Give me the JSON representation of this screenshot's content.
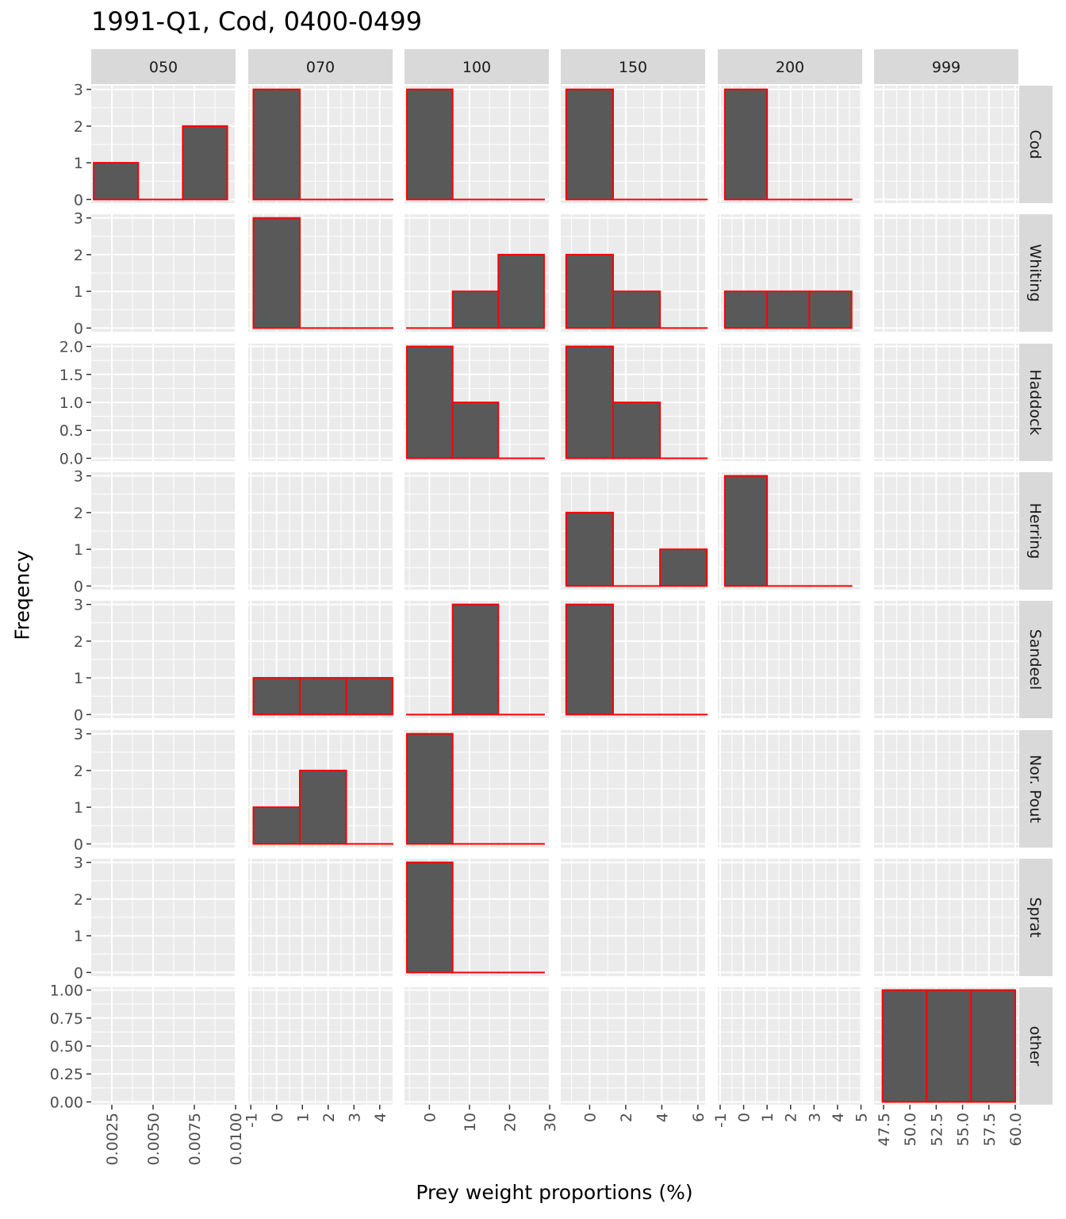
{
  "chart_data": {
    "type": "histogram-facet-grid",
    "title": "1991-Q1, Cod, 0400-0499",
    "xlabel": "Prey weight proportions (%)",
    "ylabel": "Freqency",
    "columns": [
      {
        "label": "050",
        "xlim": [
          0.00125,
          0.01
        ],
        "ticks": [
          0.0025,
          0.005,
          0.0075,
          0.01
        ],
        "tick_labels": [
          "0.0025",
          "0.0050",
          "0.0075",
          "0.0100"
        ]
      },
      {
        "label": "070",
        "xlim": [
          -1.1,
          4.5
        ],
        "ticks": [
          -1,
          0,
          1,
          2,
          3,
          4
        ],
        "tick_labels": [
          "-1",
          "0",
          "1",
          "2",
          "3",
          "4"
        ]
      },
      {
        "label": "100",
        "xlim": [
          -6.2,
          29.8
        ],
        "ticks": [
          0,
          10,
          20,
          30
        ],
        "tick_labels": [
          "0",
          "10",
          "20",
          "30"
        ]
      },
      {
        "label": "150",
        "xlim": [
          -1.6,
          6.4
        ],
        "ticks": [
          0,
          2,
          4,
          6
        ],
        "tick_labels": [
          "0",
          "2",
          "4",
          "6"
        ]
      },
      {
        "label": "200",
        "xlim": [
          -1.1,
          5.05
        ],
        "ticks": [
          -1,
          0,
          1,
          2,
          3,
          4,
          5
        ],
        "tick_labels": [
          "-1",
          "0",
          "1",
          "2",
          "3",
          "4",
          "5"
        ]
      },
      {
        "label": "999",
        "xlim": [
          46.6,
          60.3
        ],
        "ticks": [
          47.5,
          50,
          52.5,
          55,
          57.5,
          60
        ],
        "tick_labels": [
          "47.5",
          "50.0",
          "52.5",
          "55.0",
          "57.5",
          "60.0"
        ]
      }
    ],
    "rows": [
      {
        "label": "Cod",
        "ylim": [
          -0.1,
          3.1
        ],
        "ticks": [
          0,
          1,
          2,
          3
        ],
        "tick_labels": [
          "0",
          "1",
          "2",
          "3"
        ]
      },
      {
        "label": "Whiting",
        "ylim": [
          -0.1,
          3.1
        ],
        "ticks": [
          0,
          1,
          2,
          3
        ],
        "tick_labels": [
          "0",
          "1",
          "2",
          "3"
        ]
      },
      {
        "label": "Haddock",
        "ylim": [
          -0.05,
          2.05
        ],
        "ticks": [
          0,
          0.5,
          1,
          1.5,
          2
        ],
        "tick_labels": [
          "0.0",
          "0.5",
          "1.0",
          "1.5",
          "2.0"
        ]
      },
      {
        "label": "Herring",
        "ylim": [
          -0.1,
          3.1
        ],
        "ticks": [
          0,
          1,
          2,
          3
        ],
        "tick_labels": [
          "0",
          "1",
          "2",
          "3"
        ]
      },
      {
        "label": "Sandeel",
        "ylim": [
          -0.1,
          3.1
        ],
        "ticks": [
          0,
          1,
          2,
          3
        ],
        "tick_labels": [
          "0",
          "1",
          "2",
          "3"
        ]
      },
      {
        "label": "Nor. Pout",
        "ylim": [
          -0.1,
          3.1
        ],
        "ticks": [
          0,
          1,
          2,
          3
        ],
        "tick_labels": [
          "0",
          "1",
          "2",
          "3"
        ]
      },
      {
        "label": "Sprat",
        "ylim": [
          -0.1,
          3.1
        ],
        "ticks": [
          0,
          1,
          2,
          3
        ],
        "tick_labels": [
          "0",
          "1",
          "2",
          "3"
        ]
      },
      {
        "label": "other",
        "ylim": [
          -0.025,
          1.025
        ],
        "ticks": [
          0,
          0.25,
          0.5,
          0.75,
          1
        ],
        "tick_labels": [
          "0.00",
          "0.25",
          "0.50",
          "0.75",
          "1.00"
        ]
      }
    ],
    "panels": [
      {
        "row": 0,
        "col": 0,
        "bins": [
          [
            0.0014,
            0.0041,
            1
          ],
          [
            0.0041,
            0.0068,
            0
          ],
          [
            0.0068,
            0.0095,
            2
          ]
        ]
      },
      {
        "row": 0,
        "col": 1,
        "bins": [
          [
            -0.9,
            0.9,
            3
          ],
          [
            0.9,
            2.7,
            0
          ],
          [
            2.7,
            4.5,
            0
          ]
        ]
      },
      {
        "row": 0,
        "col": 2,
        "bins": [
          [
            -5.6,
            5.8,
            3
          ],
          [
            5.8,
            17.2,
            0
          ],
          [
            17.2,
            28.6,
            0
          ]
        ]
      },
      {
        "row": 0,
        "col": 3,
        "bins": [
          [
            -1.3,
            1.3,
            3
          ],
          [
            1.3,
            3.9,
            0
          ],
          [
            3.9,
            6.5,
            0
          ]
        ]
      },
      {
        "row": 0,
        "col": 4,
        "bins": [
          [
            -0.8,
            1.0,
            3
          ],
          [
            1.0,
            2.8,
            0
          ],
          [
            2.8,
            4.6,
            0
          ]
        ]
      },
      {
        "row": 1,
        "col": 1,
        "bins": [
          [
            -0.9,
            0.9,
            3
          ],
          [
            0.9,
            2.7,
            0
          ],
          [
            2.7,
            4.5,
            0
          ]
        ]
      },
      {
        "row": 1,
        "col": 2,
        "bins": [
          [
            -5.6,
            5.8,
            0
          ],
          [
            5.8,
            17.2,
            1
          ],
          [
            17.2,
            28.6,
            2
          ]
        ]
      },
      {
        "row": 1,
        "col": 3,
        "bins": [
          [
            -1.3,
            1.3,
            2
          ],
          [
            1.3,
            3.9,
            1
          ],
          [
            3.9,
            6.5,
            0
          ]
        ]
      },
      {
        "row": 1,
        "col": 4,
        "bins": [
          [
            -0.8,
            1.0,
            1
          ],
          [
            1.0,
            2.8,
            1
          ],
          [
            2.8,
            4.6,
            1
          ]
        ]
      },
      {
        "row": 2,
        "col": 2,
        "bins": [
          [
            -5.6,
            5.8,
            2
          ],
          [
            5.8,
            17.2,
            1
          ],
          [
            17.2,
            28.6,
            0
          ]
        ]
      },
      {
        "row": 2,
        "col": 3,
        "bins": [
          [
            -1.3,
            1.3,
            2
          ],
          [
            1.3,
            3.9,
            1
          ],
          [
            3.9,
            6.5,
            0
          ]
        ]
      },
      {
        "row": 3,
        "col": 3,
        "bins": [
          [
            -1.3,
            1.3,
            2
          ],
          [
            1.3,
            3.9,
            0
          ],
          [
            3.9,
            6.5,
            1
          ]
        ]
      },
      {
        "row": 3,
        "col": 4,
        "bins": [
          [
            -0.8,
            1.0,
            3
          ],
          [
            1.0,
            2.8,
            0
          ],
          [
            2.8,
            4.6,
            0
          ]
        ]
      },
      {
        "row": 4,
        "col": 1,
        "bins": [
          [
            -0.9,
            0.9,
            1
          ],
          [
            0.9,
            2.7,
            1
          ],
          [
            2.7,
            4.5,
            1
          ]
        ]
      },
      {
        "row": 4,
        "col": 2,
        "bins": [
          [
            -5.6,
            5.8,
            0
          ],
          [
            5.8,
            17.2,
            3
          ],
          [
            17.2,
            28.6,
            0
          ]
        ]
      },
      {
        "row": 4,
        "col": 3,
        "bins": [
          [
            -1.3,
            1.3,
            3
          ],
          [
            1.3,
            3.9,
            0
          ],
          [
            3.9,
            6.5,
            0
          ]
        ]
      },
      {
        "row": 5,
        "col": 1,
        "bins": [
          [
            -0.9,
            0.9,
            1
          ],
          [
            0.9,
            2.7,
            2
          ],
          [
            2.7,
            4.5,
            0
          ]
        ]
      },
      {
        "row": 5,
        "col": 2,
        "bins": [
          [
            -5.6,
            5.8,
            3
          ],
          [
            5.8,
            17.2,
            0
          ],
          [
            17.2,
            28.6,
            0
          ]
        ]
      },
      {
        "row": 6,
        "col": 2,
        "bins": [
          [
            -5.6,
            5.8,
            3
          ],
          [
            5.8,
            17.2,
            0
          ],
          [
            17.2,
            28.6,
            0
          ]
        ]
      },
      {
        "row": 7,
        "col": 5,
        "bins": [
          [
            47.4,
            51.6,
            1
          ],
          [
            51.6,
            55.8,
            1
          ],
          [
            55.8,
            60.0,
            1
          ]
        ]
      }
    ],
    "bar_fill": "#595959",
    "bar_outline": "#ff0000",
    "panel_background": "#ebebeb",
    "strip_background": "#d9d9d9",
    "gridlines": true
  }
}
